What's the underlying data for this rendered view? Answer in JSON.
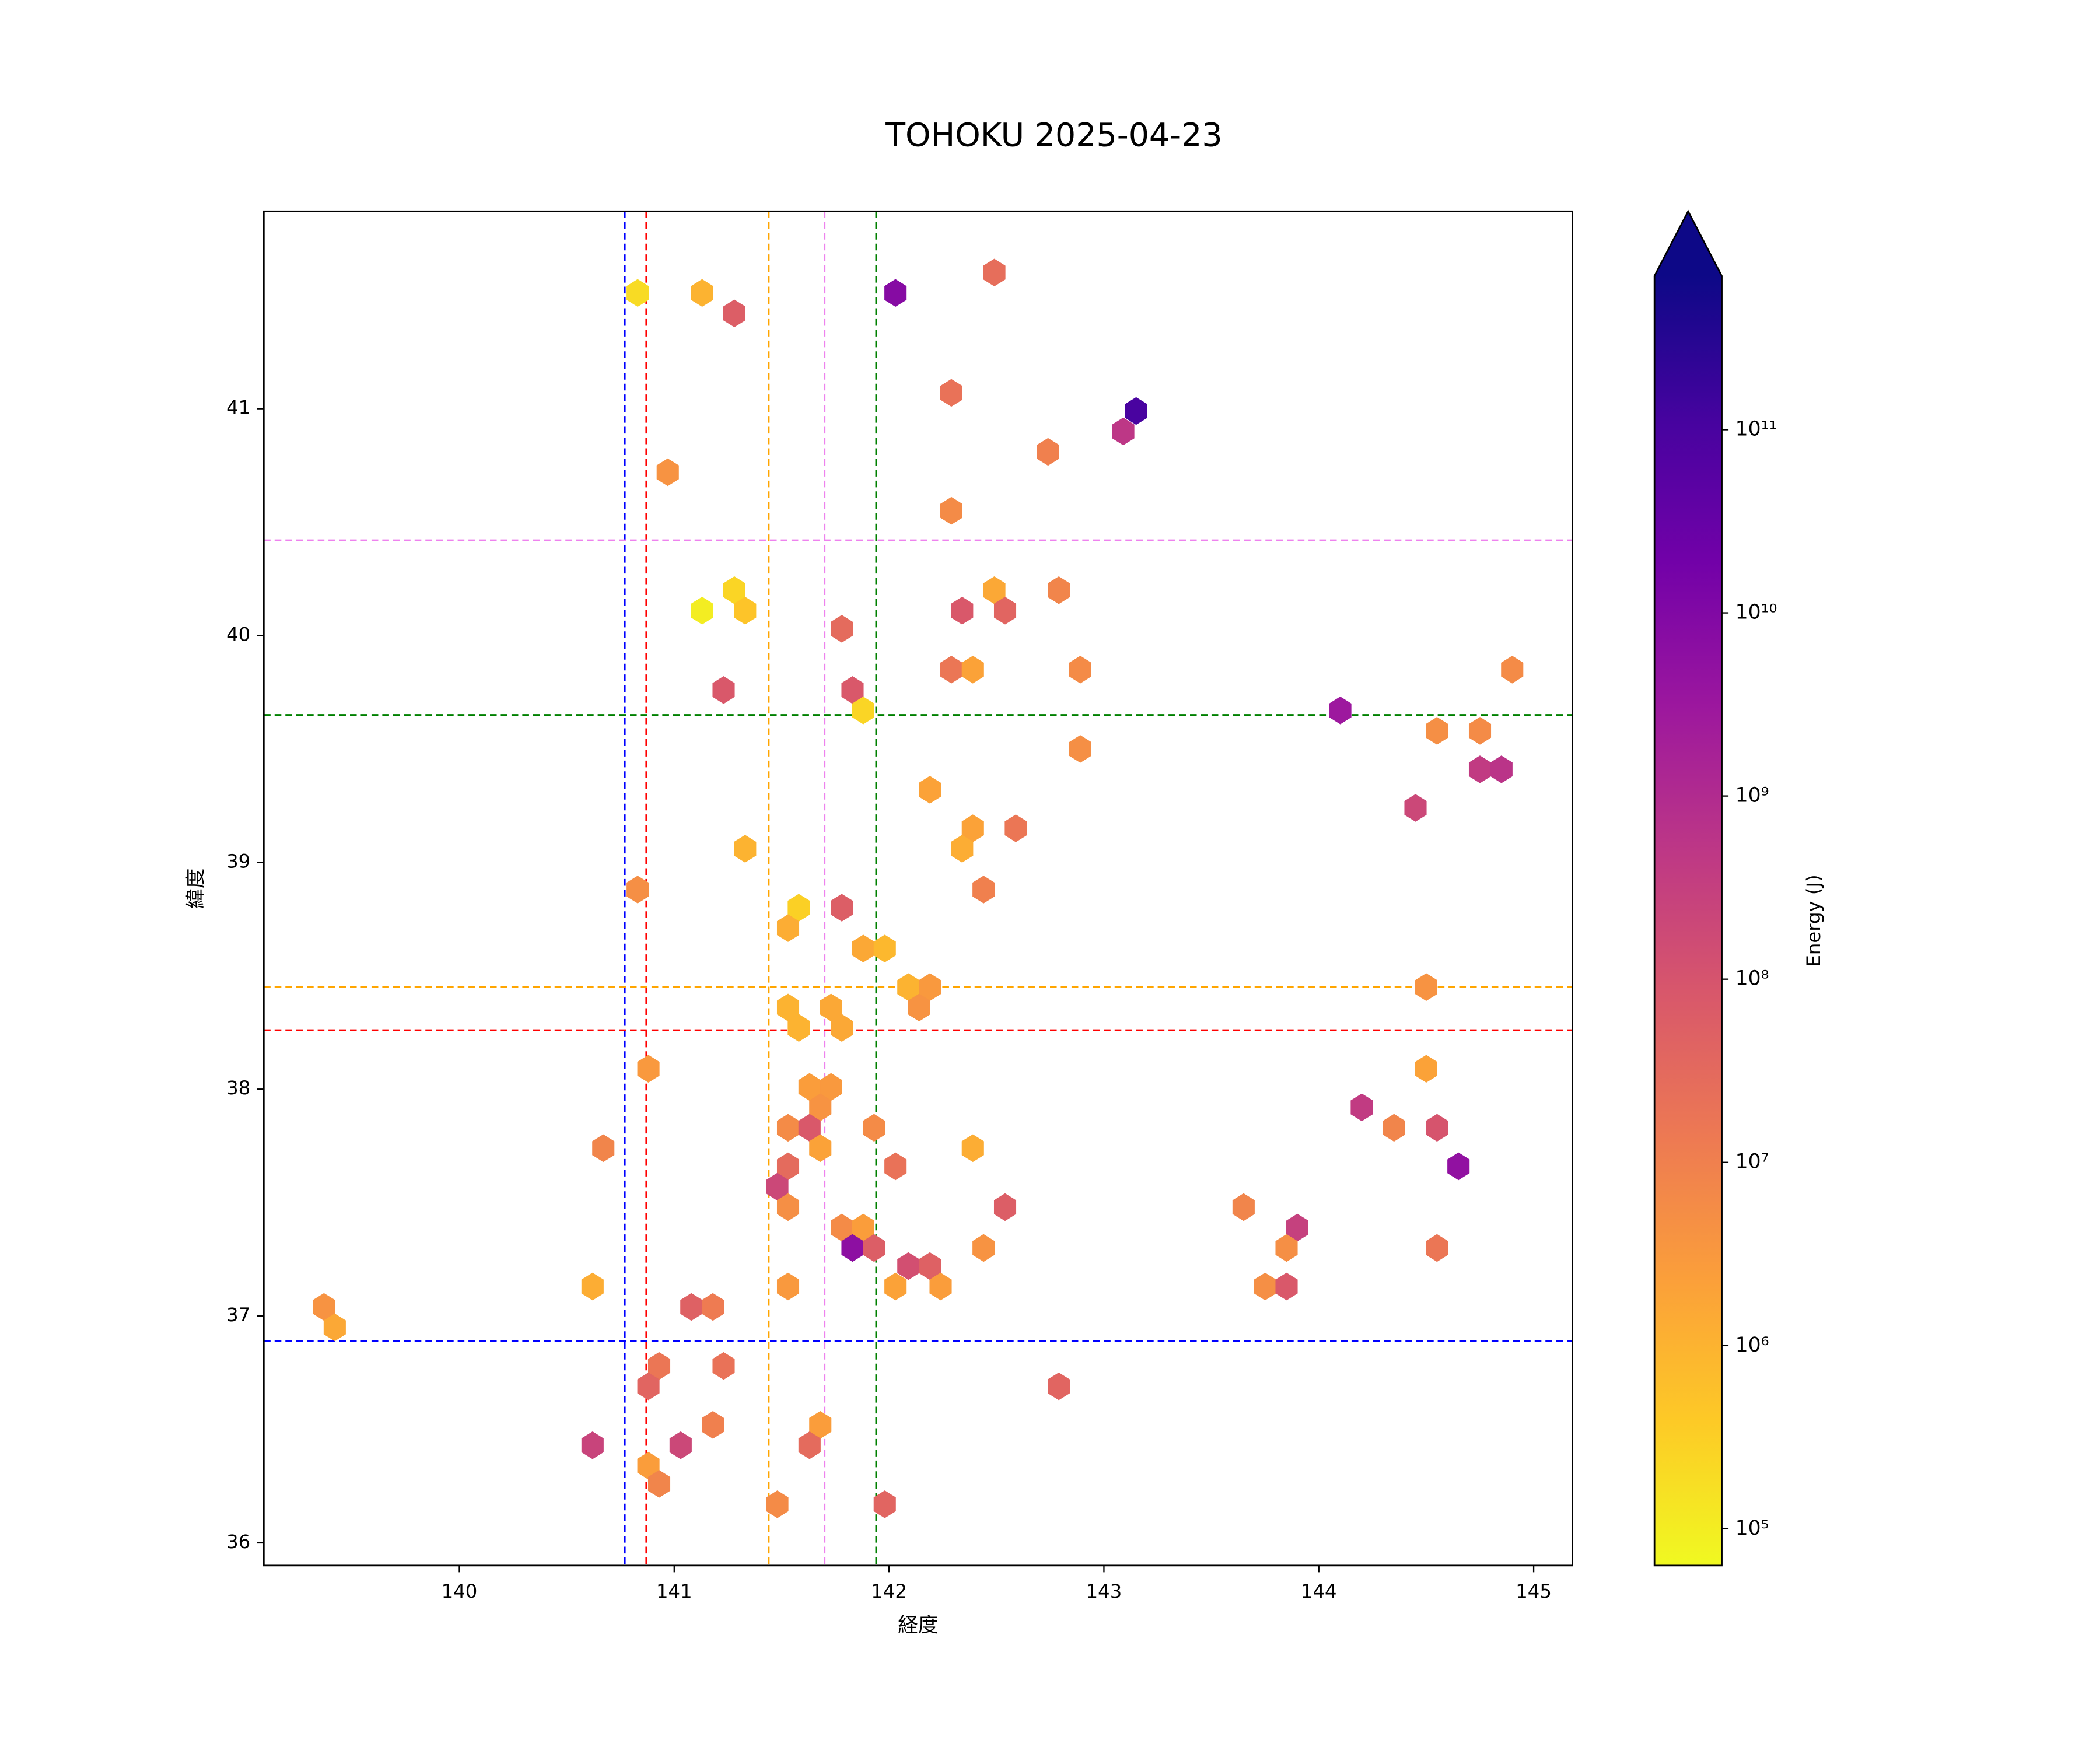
{
  "chart_data": {
    "type": "hexbin",
    "title": "TOHOKU 2025-04-23",
    "x_label": "経度",
    "y_label": "緯度",
    "colorbar_label": "Energy (J)",
    "x": [
      140.83,
      141.13,
      141.28,
      142.03,
      142.49,
      142.29,
      143.15,
      143.09,
      140.97,
      142.74,
      142.29,
      141.28,
      141.13,
      141.33,
      142.49,
      142.79,
      142.34,
      142.54,
      141.78,
      141.23,
      141.83,
      141.88,
      142.29,
      142.39,
      142.89,
      144.1,
      144.9,
      144.55,
      144.75,
      144.75,
      144.85,
      144.45,
      142.89,
      142.19,
      142.39,
      142.59,
      142.34,
      141.33,
      142.44,
      140.83,
      141.58,
      141.53,
      141.78,
      141.88,
      141.98,
      142.09,
      142.19,
      142.14,
      144.5,
      141.53,
      141.73,
      141.58,
      141.78,
      140.88,
      144.5,
      141.63,
      141.73,
      141.68,
      140.67,
      141.53,
      141.63,
      141.93,
      142.39,
      141.53,
      142.03,
      141.68,
      144.2,
      144.35,
      144.55,
      144.65,
      141.48,
      141.53,
      142.54,
      143.65,
      141.78,
      141.88,
      141.83,
      141.93,
      142.44,
      142.09,
      142.19,
      143.9,
      143.85,
      143.75,
      143.85,
      144.55,
      140.62,
      141.53,
      142.03,
      142.24,
      139.37,
      139.42,
      141.08,
      141.18,
      140.93,
      140.88,
      141.23,
      142.79,
      141.18,
      141.68,
      140.62,
      141.03,
      141.63,
      140.88,
      140.93,
      141.48,
      141.98
    ],
    "y": [
      41.51,
      41.51,
      41.42,
      41.51,
      41.6,
      41.07,
      40.99,
      40.9,
      40.72,
      40.81,
      40.55,
      40.2,
      40.11,
      40.11,
      40.2,
      40.2,
      40.11,
      40.11,
      40.03,
      39.76,
      39.76,
      39.67,
      39.85,
      39.85,
      39.85,
      39.67,
      39.85,
      39.58,
      39.58,
      39.41,
      39.41,
      39.24,
      39.5,
      39.32,
      39.15,
      39.15,
      39.06,
      39.06,
      38.88,
      38.88,
      38.8,
      38.71,
      38.8,
      38.62,
      38.62,
      38.45,
      38.45,
      38.36,
      38.45,
      38.36,
      38.36,
      38.27,
      38.27,
      38.09,
      38.09,
      38.01,
      38.01,
      37.92,
      37.74,
      37.83,
      37.83,
      37.83,
      37.74,
      37.66,
      37.66,
      37.74,
      37.92,
      37.83,
      37.83,
      37.66,
      37.57,
      37.48,
      37.48,
      37.48,
      37.39,
      37.39,
      37.3,
      37.3,
      37.3,
      37.22,
      37.22,
      37.39,
      37.3,
      37.13,
      37.13,
      37.3,
      37.13,
      37.13,
      37.13,
      37.13,
      37.04,
      36.95,
      37.04,
      37.04,
      36.78,
      36.69,
      36.78,
      36.69,
      36.52,
      36.52,
      36.43,
      36.43,
      36.43,
      36.34,
      36.26,
      36.17,
      36.17
    ],
    "values": [
      200000,
      1000000,
      60000000,
      8000000000,
      25000000,
      20000000,
      100000000000,
      500000000,
      4000000,
      10000000,
      6000000,
      250000,
      100000,
      500000,
      1600000,
      8000000,
      80000000,
      40000000,
      30000000,
      80000000,
      80000000,
      250000,
      16000000,
      2000000,
      6000000,
      3000000000,
      6000000,
      5000000,
      6000000,
      400000000,
      600000000,
      200000000,
      5000000,
      2000000,
      2000000,
      16000000,
      1300000,
      1000000,
      10000000,
      5000000,
      300000,
      1300000,
      60000000,
      1600000,
      800000,
      1000000,
      3000000,
      4000000,
      4000000,
      1000000,
      1600000,
      1000000,
      1600000,
      3000000,
      2000000,
      2500000,
      3000000,
      4000000,
      8000000,
      6000000,
      80000000,
      6000000,
      1300000,
      30000000,
      20000000,
      2000000,
      400000000,
      8000000,
      100000000,
      5000000000,
      200000000,
      5000000,
      60000000,
      8000000,
      6000000,
      2500000,
      6000000000,
      60000000,
      4000000,
      130000000,
      50000000,
      300000000,
      5000000,
      5000000,
      80000000,
      16000000,
      1300000,
      3000000,
      2000000,
      2500000,
      4000000,
      1600000,
      50000000,
      13000000,
      16000000,
      40000000,
      20000000,
      40000000,
      10000000,
      2500000,
      250000000,
      200000000,
      30000000,
      2500000,
      8000000,
      6000000,
      40000000
    ],
    "xlim": [
      139.09,
      145.18
    ],
    "ylim": [
      35.9,
      41.87
    ],
    "xticks": [
      140,
      141,
      142,
      143,
      144,
      145
    ],
    "yticks": [
      36,
      37,
      38,
      39,
      40,
      41
    ],
    "clim": [
      63000,
      690000000000
    ],
    "colorbar_log": true,
    "colorbar_extend": "max",
    "colorbar_ticks": [
      {
        "value": 100000,
        "label": "10⁵"
      },
      {
        "value": 1000000,
        "label": "10⁶"
      },
      {
        "value": 10000000,
        "label": "10⁷"
      },
      {
        "value": 100000000,
        "label": "10⁸"
      },
      {
        "value": 1000000000,
        "label": "10⁹"
      },
      {
        "value": 10000000000,
        "label": "10¹⁰"
      },
      {
        "value": 100000000000,
        "label": "10¹¹"
      }
    ],
    "colormap": [
      "#f0f921",
      "#fdca26",
      "#fb9f3a",
      "#ed7953",
      "#d8576b",
      "#bd3786",
      "#9c179e",
      "#7201a8",
      "#46039f",
      "#0d0887"
    ],
    "reference_lines": [
      {
        "axis": "x",
        "value": 140.77,
        "color": "#0000ff"
      },
      {
        "axis": "x",
        "value": 140.87,
        "color": "#ff0000"
      },
      {
        "axis": "x",
        "value": 141.44,
        "color": "#ffa500"
      },
      {
        "axis": "x",
        "value": 141.7,
        "color": "#ee82ee"
      },
      {
        "axis": "x",
        "value": 141.94,
        "color": "#008000"
      },
      {
        "axis": "y",
        "value": 40.42,
        "color": "#ee82ee"
      },
      {
        "axis": "y",
        "value": 39.65,
        "color": "#008000"
      },
      {
        "axis": "y",
        "value": 38.45,
        "color": "#ffa500"
      },
      {
        "axis": "y",
        "value": 38.26,
        "color": "#ff0000"
      },
      {
        "axis": "y",
        "value": 36.89,
        "color": "#0000ff"
      }
    ]
  }
}
